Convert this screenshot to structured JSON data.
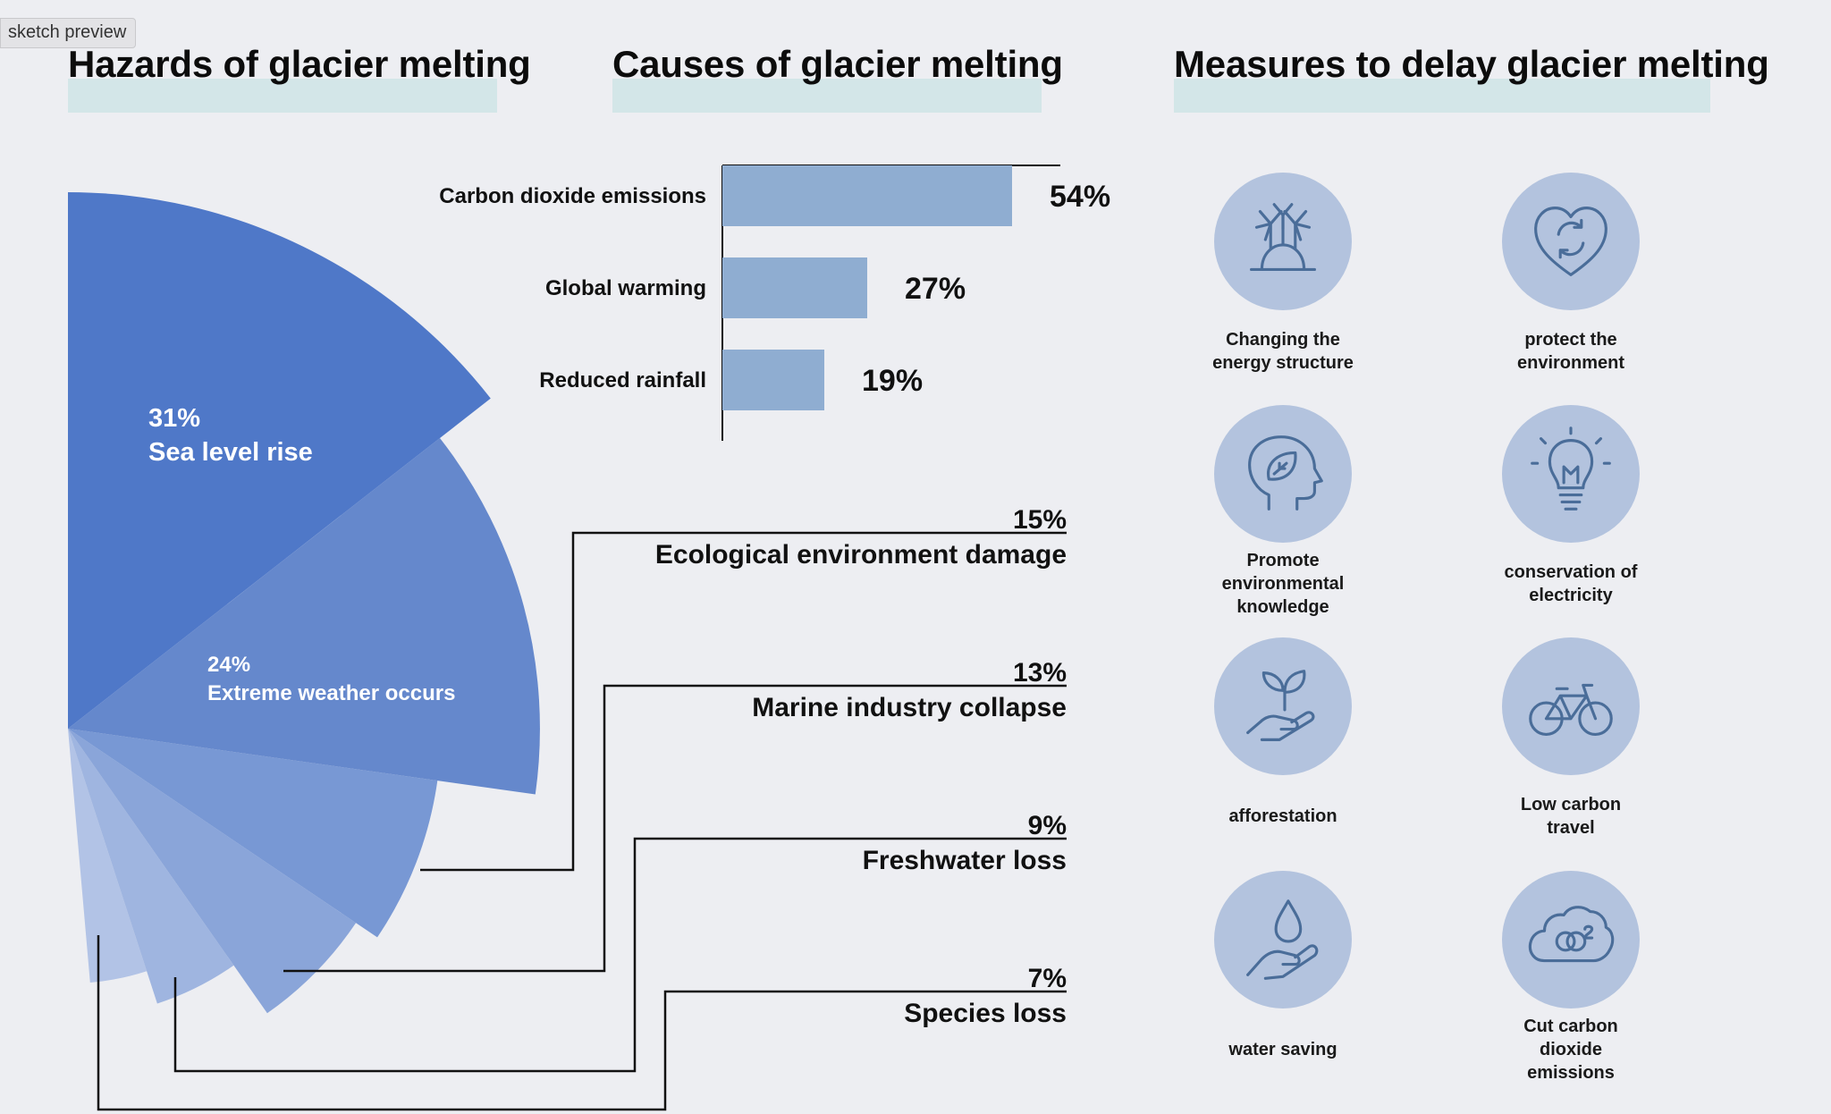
{
  "badge": "sketch preview",
  "headings": {
    "hazards": "Hazards of glacier melting",
    "causes": "Causes of glacier melting",
    "measures": "Measures to delay glacier melting"
  },
  "colors": {
    "bar": "#8fadd1",
    "circle": "#b3c3de",
    "icon": "#4a6d99",
    "highlight": "#d3e6e8",
    "slices": [
      "#4f78c8",
      "#6588cc",
      "#7898d4",
      "#8aa5d9",
      "#9fb5e0",
      "#b2c3e6"
    ]
  },
  "chart_data": [
    {
      "type": "bar",
      "orientation": "horizontal",
      "title": "Causes of glacier melting",
      "categories": [
        "Carbon dioxide emissions",
        "Global warming",
        "Reduced rainfall"
      ],
      "values": [
        54,
        27,
        19
      ],
      "value_labels": [
        "54%",
        "27%",
        "19%"
      ],
      "unit": "%"
    },
    {
      "type": "pie",
      "subtype": "radial-fan",
      "title": "Hazards of glacier melting",
      "categories": [
        "Sea level rise",
        "Extreme weather occurs",
        "Ecological environment damage",
        "Marine industry collapse",
        "Freshwater loss",
        "Species loss"
      ],
      "values": [
        31,
        24,
        15,
        13,
        9,
        7
      ],
      "value_labels": [
        "31%",
        "24%",
        "15%",
        "13%",
        "9%",
        "7%"
      ],
      "unit": "%"
    }
  ],
  "measures": [
    {
      "label": "Changing the energy structure",
      "icon": "wind-turbine-icon"
    },
    {
      "label": "protect the environment",
      "icon": "heart-recycle-icon"
    },
    {
      "label": "Promote environmental knowledge",
      "icon": "head-leaf-icon"
    },
    {
      "label": "conservation of electricity",
      "icon": "lightbulb-icon"
    },
    {
      "label": "afforestation",
      "icon": "hand-sprout-icon"
    },
    {
      "label": "Low carbon travel",
      "icon": "bicycle-icon"
    },
    {
      "label": "water saving",
      "icon": "hand-water-drop-icon"
    },
    {
      "label": "Cut carbon dioxide emissions",
      "icon": "co2-cloud-icon"
    }
  ]
}
